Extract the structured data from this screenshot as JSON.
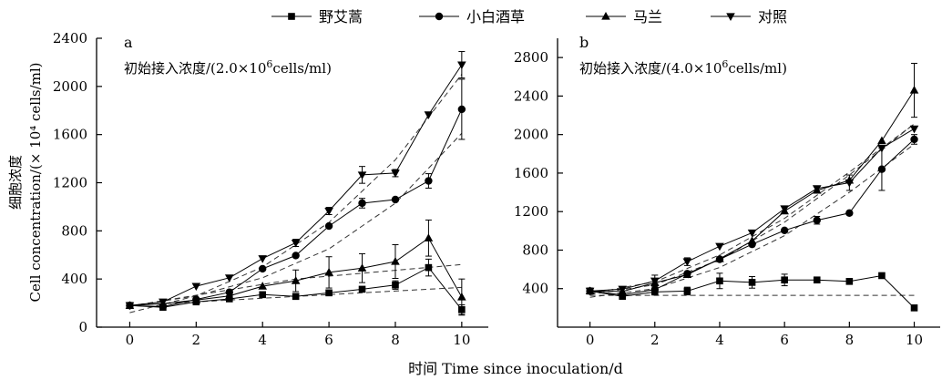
{
  "legend": {
    "placement": "top-center"
  },
  "xlabel": "时间 Time since inoculation/d",
  "ylabel_line1": "细胞浓度",
  "ylabel_line2": "Cell concentration/(× 10⁴ cells/ml)",
  "chart_data": [
    {
      "type": "line",
      "panel": "a",
      "annotation": "初始接入浓度/(2.0×10⁶cells/ml)",
      "x": [
        0,
        1,
        2,
        3,
        4,
        5,
        6,
        7,
        8,
        9,
        10
      ],
      "xticks": [
        0,
        2,
        4,
        6,
        8,
        10
      ],
      "xlim": [
        -1,
        10.8
      ],
      "ylim": [
        0,
        2400
      ],
      "yticks": [
        0,
        400,
        800,
        1200,
        1600,
        2000,
        2400
      ],
      "series": [
        {
          "name": "野艾蒿",
          "marker": "square",
          "values": [
            180,
            165,
            210,
            235,
            270,
            255,
            285,
            315,
            350,
            495,
            145
          ],
          "errors": [
            0,
            0,
            20,
            0,
            0,
            0,
            0,
            0,
            35,
            70,
            40
          ],
          "fit": [
            [
              0,
              180
            ],
            [
              10,
              330
            ]
          ]
        },
        {
          "name": "小白酒草",
          "marker": "circle",
          "values": [
            180,
            170,
            230,
            290,
            485,
            595,
            840,
            1030,
            1060,
            1215,
            1810
          ],
          "errors": [
            0,
            0,
            0,
            0,
            0,
            0,
            0,
            40,
            0,
            60,
            250
          ],
          "fit": [
            [
              0,
              175
            ],
            [
              2,
              260
            ],
            [
              4,
              410
            ],
            [
              6,
              650
            ],
            [
              8,
              1030
            ],
            [
              10,
              1610
            ]
          ]
        },
        {
          "name": "马兰",
          "marker": "triangle-up",
          "values": [
            180,
            195,
            225,
            260,
            340,
            385,
            455,
            490,
            545,
            740,
            250
          ],
          "errors": [
            0,
            0,
            0,
            0,
            0,
            90,
            130,
            120,
            140,
            150,
            150
          ],
          "fit": [
            [
              0,
              175
            ],
            [
              5,
              400
            ],
            [
              10,
              520
            ]
          ]
        },
        {
          "name": "对照",
          "marker": "triangle-down",
          "values": [
            180,
            210,
            340,
            410,
            570,
            700,
            965,
            1265,
            1280,
            1765,
            2180
          ],
          "errors": [
            0,
            0,
            0,
            0,
            0,
            30,
            30,
            70,
            30,
            0,
            110
          ],
          "fit": [
            [
              0,
              120
            ],
            [
              2,
              260
            ],
            [
              4,
              500
            ],
            [
              6,
              870
            ],
            [
              8,
              1390
            ],
            [
              10,
              2100
            ]
          ]
        }
      ]
    },
    {
      "type": "line",
      "panel": "b",
      "annotation": "初始接入浓度/(4.0×10⁶cells/ml)",
      "x": [
        0,
        1,
        2,
        3,
        4,
        5,
        6,
        7,
        8,
        9,
        10
      ],
      "xticks": [
        0,
        2,
        4,
        6,
        8,
        10
      ],
      "xlim": [
        -1,
        10.8
      ],
      "ylim": [
        0,
        3000
      ],
      "yticks": [
        400,
        800,
        1200,
        1600,
        2000,
        2400,
        2800
      ],
      "series": [
        {
          "name": "野艾蒿",
          "marker": "square",
          "values": [
            375,
            320,
            365,
            375,
            480,
            465,
            490,
            490,
            475,
            535,
            200
          ],
          "errors": [
            0,
            0,
            0,
            40,
            80,
            60,
            60,
            0,
            0,
            0,
            0
          ],
          "fit": [
            [
              0,
              330
            ],
            [
              10,
              330
            ]
          ]
        },
        {
          "name": "小白酒草",
          "marker": "circle",
          "values": [
            375,
            335,
            390,
            555,
            705,
            860,
            1005,
            1110,
            1185,
            1640,
            1950
          ],
          "errors": [
            0,
            0,
            0,
            0,
            0,
            0,
            0,
            40,
            0,
            220,
            50
          ],
          "fit": [
            [
              0,
              310
            ],
            [
              2,
              400
            ],
            [
              4,
              620
            ],
            [
              6,
              950
            ],
            [
              8,
              1400
            ],
            [
              10,
              1900
            ]
          ]
        },
        {
          "name": "马兰",
          "marker": "triangle-up",
          "values": [
            375,
            370,
            460,
            545,
            710,
            895,
            1205,
            1420,
            1525,
            1935,
            2460
          ],
          "errors": [
            0,
            0,
            0,
            0,
            0,
            0,
            0,
            0,
            0,
            0,
            280
          ],
          "fit": [
            [
              0,
              340
            ],
            [
              2,
              440
            ],
            [
              4,
              700
            ],
            [
              6,
              1090
            ],
            [
              8,
              1580
            ],
            [
              10,
              2110
            ]
          ]
        },
        {
          "name": "对照",
          "marker": "triangle-down",
          "values": [
            375,
            395,
            480,
            680,
            840,
            980,
            1230,
            1440,
            1500,
            1860,
            2060
          ],
          "errors": [
            0,
            0,
            60,
            40,
            0,
            0,
            0,
            0,
            80,
            0,
            0
          ],
          "fit": [
            [
              0,
              350
            ],
            [
              2,
              470
            ],
            [
              4,
              750
            ],
            [
              6,
              1130
            ],
            [
              8,
              1610
            ],
            [
              10,
              2110
            ]
          ]
        }
      ]
    }
  ]
}
